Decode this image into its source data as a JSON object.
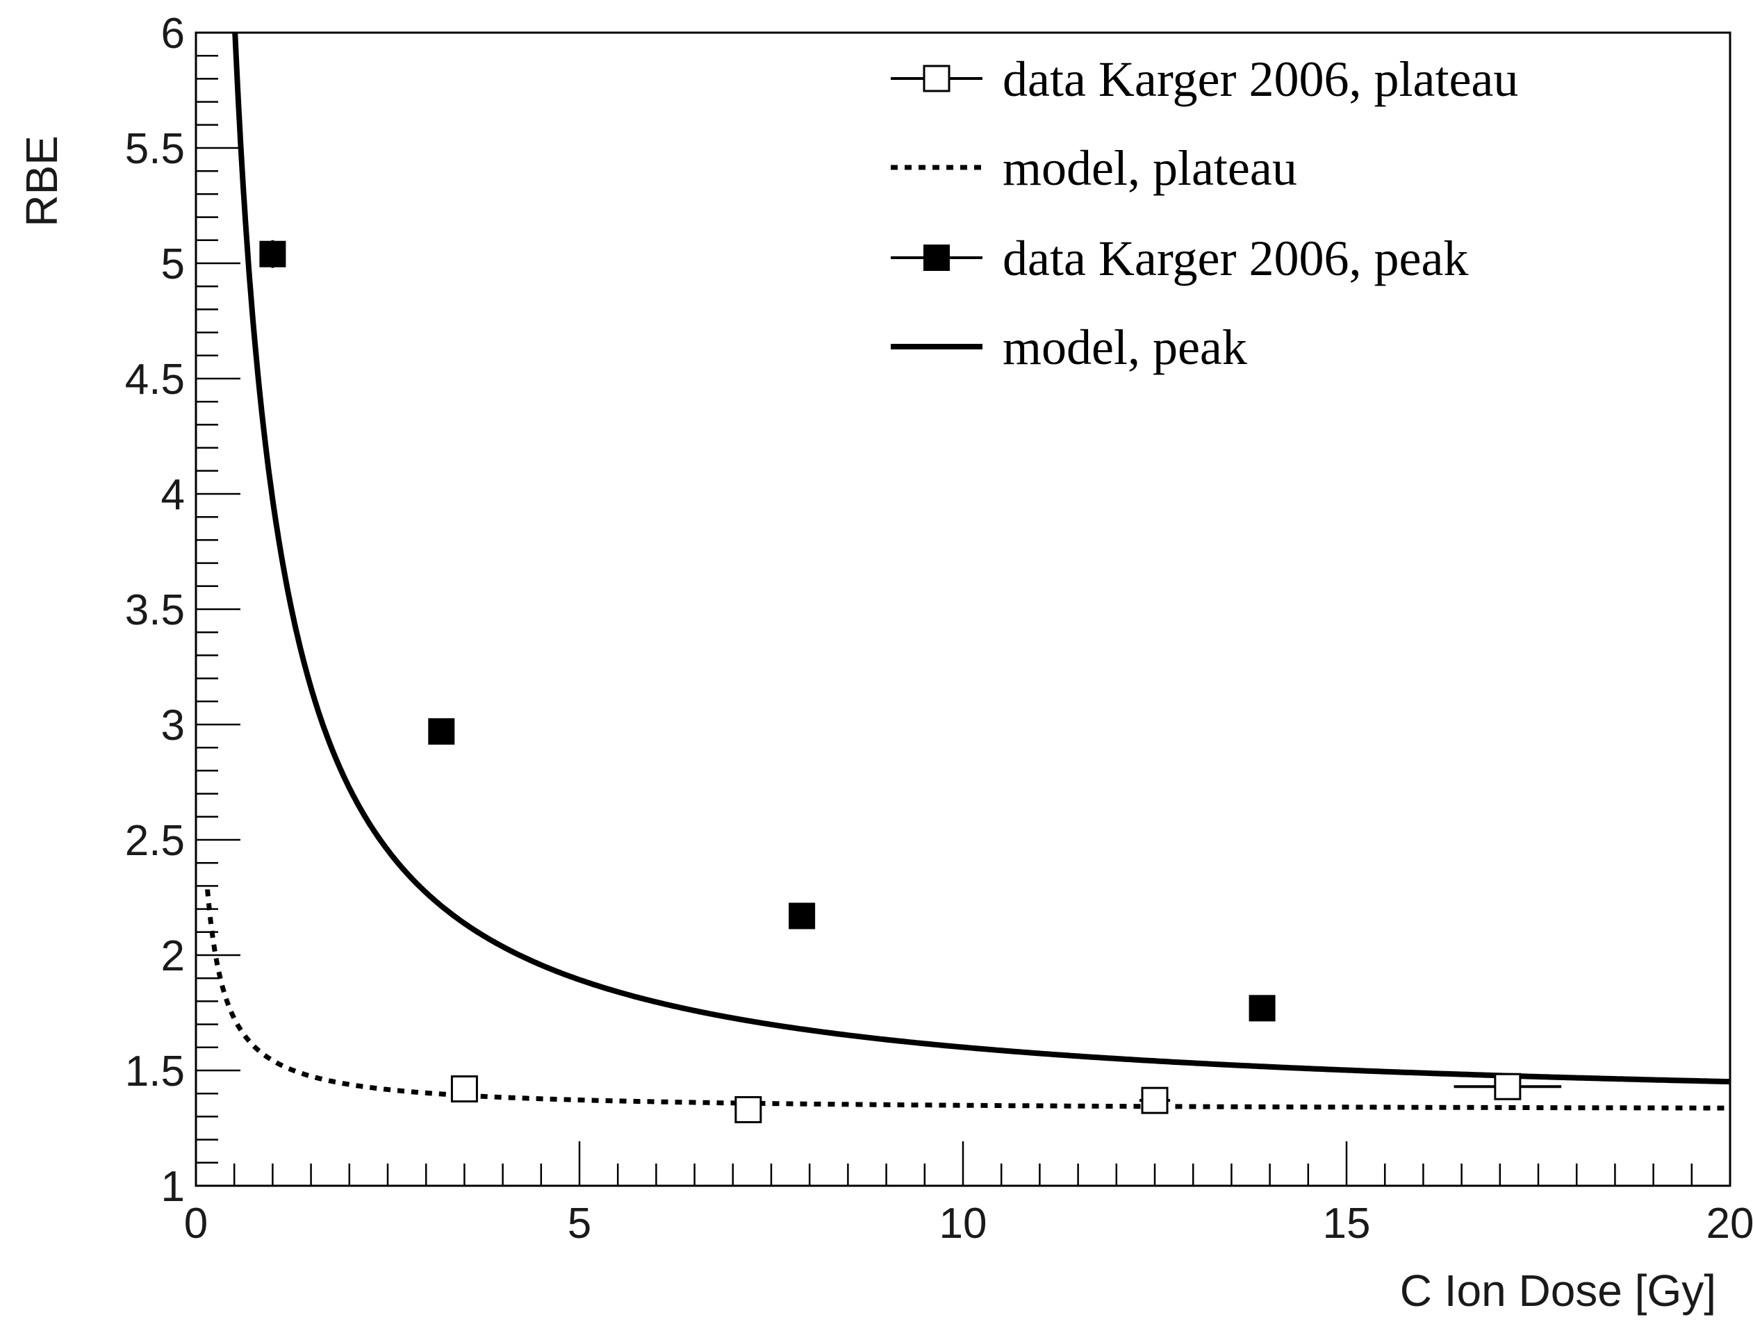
{
  "chart_data": {
    "type": "scatter",
    "xlabel": "C Ion Dose [Gy]",
    "ylabel": "RBE",
    "xlim": [
      0,
      20
    ],
    "ylim": [
      1,
      6
    ],
    "grid": false,
    "legend_position": "top-right",
    "x_tick_labels": [
      "0",
      "5",
      "10",
      "15",
      "20"
    ],
    "y_tick_labels": [
      "1",
      "1.5",
      "2",
      "2.5",
      "3",
      "3.5",
      "4",
      "4.5",
      "5",
      "5.5",
      "6"
    ],
    "x_major_ticks": [
      0,
      5,
      10,
      15,
      20
    ],
    "y_major_ticks": [
      1,
      1.5,
      2,
      2.5,
      3,
      3.5,
      4,
      4.5,
      5,
      5.5,
      6
    ],
    "series": [
      {
        "name": "data Karger 2006, plateau",
        "kind": "points",
        "marker": "open-square",
        "x": [
          3.5,
          7.2,
          12.5,
          17.1
        ],
        "y": [
          1.42,
          1.33,
          1.37,
          1.43
        ],
        "xerr": [
          0,
          0,
          0.2,
          0.7
        ]
      },
      {
        "name": "model, plateau",
        "kind": "curve",
        "style": "dotted",
        "model": {
          "a": 1.325,
          "b": 0.24,
          "c": 0.1
        },
        "x_range": [
          0.15,
          20
        ]
      },
      {
        "name": "data Karger 2006, peak",
        "kind": "points",
        "marker": "filled-square",
        "x": [
          1.0,
          3.2,
          7.9,
          13.9
        ],
        "y": [
          5.04,
          2.97,
          2.17,
          1.77
        ],
        "yerr": [
          0.06,
          0.03,
          0.03,
          0.03
        ],
        "xerr": [
          0,
          0,
          0,
          0.1
        ]
      },
      {
        "name": "model, peak",
        "kind": "curve",
        "style": "solid",
        "model": {
          "a": 1.3,
          "b": 3.05,
          "c": 0.14
        },
        "x_range": [
          0.16,
          20
        ]
      }
    ]
  }
}
